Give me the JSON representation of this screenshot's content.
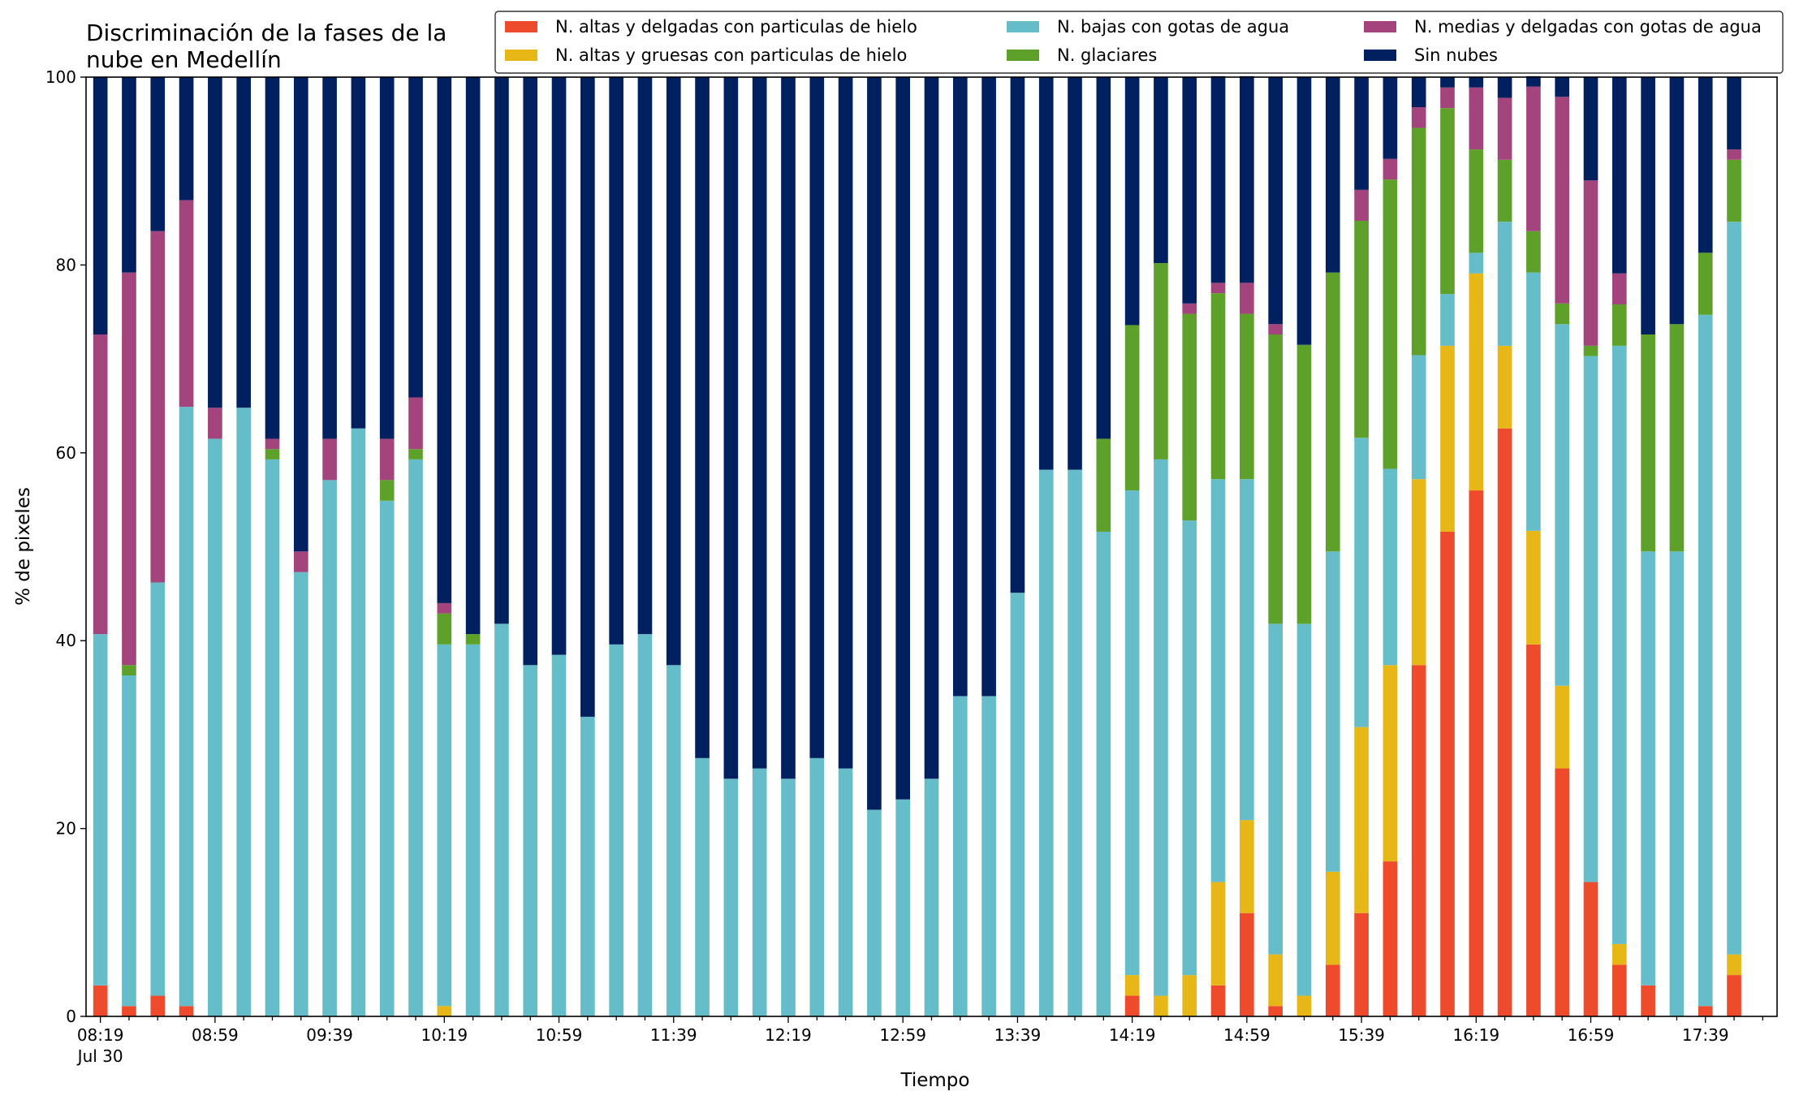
{
  "chart_data": {
    "type": "bar",
    "stacked": true,
    "title": [
      "Discriminación de la fases de la",
      "nube en Medellín"
    ],
    "xlabel": "Tiempo",
    "ylabel": "% de pixeles",
    "ylim": [
      0,
      100
    ],
    "yticks": [
      0,
      20,
      40,
      60,
      80,
      100
    ],
    "grid": false,
    "legend_position": "top-right",
    "x_date_label": "Jul 30",
    "x": [
      "08:19",
      "08:29",
      "08:39",
      "08:49",
      "08:59",
      "09:09",
      "09:19",
      "09:29",
      "09:39",
      "09:49",
      "09:59",
      "10:09",
      "10:19",
      "10:29",
      "10:39",
      "10:49",
      "10:59",
      "11:09",
      "11:19",
      "11:29",
      "11:39",
      "11:49",
      "11:59",
      "12:09",
      "12:19",
      "12:29",
      "12:39",
      "12:49",
      "12:59",
      "13:09",
      "13:19",
      "13:29",
      "13:39",
      "13:49",
      "13:59",
      "14:09",
      "14:19",
      "14:29",
      "14:39",
      "14:49",
      "14:59",
      "15:09",
      "15:19",
      "15:29",
      "15:39",
      "15:49",
      "15:59",
      "16:09",
      "16:19",
      "16:29",
      "16:39",
      "16:49",
      "16:59",
      "17:09",
      "17:19",
      "17:29",
      "17:39",
      "17:49"
    ],
    "x_tick_labels": [
      "08:19",
      "08:59",
      "09:39",
      "10:19",
      "10:59",
      "11:39",
      "12:19",
      "12:59",
      "13:39",
      "14:19",
      "14:59",
      "15:39",
      "16:19",
      "16:59",
      "17:39"
    ],
    "x_tick_label_times": [
      "08:19",
      "08:59",
      "09:39",
      "10:19",
      "10:59",
      "11:39",
      "12:19",
      "12:59",
      "13:39",
      "14:19",
      "14:59",
      "15:39",
      "16:19",
      "16:59",
      "17:39"
    ],
    "series": [
      {
        "name": "N. altas y delgadas con particulas de hielo",
        "color": "#ee4a2c",
        "values": [
          3.3,
          1.1,
          2.2,
          1.1,
          0,
          0,
          0,
          0,
          0,
          0,
          0,
          0,
          0,
          0,
          0,
          0,
          0,
          0,
          0,
          0,
          0,
          0,
          0,
          0,
          0,
          0,
          0,
          0,
          0,
          0,
          0,
          0,
          0,
          0,
          0,
          0,
          2.2,
          0,
          0,
          3.3,
          11.0,
          1.1,
          0,
          5.5,
          11.0,
          16.5,
          37.4,
          51.6,
          56.0,
          62.6,
          39.6,
          26.4,
          14.3,
          5.5,
          3.3,
          0,
          1.1,
          4.4
        ]
      },
      {
        "name": "N. altas y gruesas con particulas de hielo",
        "color": "#e6b717",
        "values": [
          0,
          0,
          0,
          0,
          0,
          0,
          0,
          0,
          0,
          0,
          0,
          0,
          1.1,
          0,
          0,
          0,
          0,
          0,
          0,
          0,
          0,
          0,
          0,
          0,
          0,
          0,
          0,
          0,
          0,
          0,
          0,
          0,
          0,
          0,
          0,
          0,
          2.2,
          2.2,
          4.4,
          11.0,
          9.9,
          5.5,
          2.2,
          9.9,
          19.8,
          20.9,
          19.8,
          19.8,
          23.1,
          8.8,
          12.1,
          8.8,
          0,
          2.2,
          0,
          0,
          0,
          2.2
        ]
      },
      {
        "name": "N. bajas con gotas de agua",
        "color": "#66bdca",
        "values": [
          37.4,
          35.2,
          44.0,
          63.8,
          61.5,
          64.8,
          59.3,
          47.3,
          57.1,
          62.6,
          54.9,
          59.3,
          38.5,
          39.6,
          41.8,
          37.4,
          38.5,
          31.9,
          39.6,
          40.7,
          37.4,
          27.5,
          25.3,
          26.4,
          25.3,
          27.5,
          26.4,
          22.0,
          23.1,
          25.3,
          34.1,
          34.1,
          45.1,
          58.2,
          58.2,
          51.6,
          51.6,
          57.1,
          48.4,
          42.9,
          36.3,
          35.2,
          39.6,
          34.1,
          30.8,
          20.9,
          13.2,
          5.5,
          2.2,
          13.2,
          27.5,
          38.5,
          56.0,
          63.7,
          46.2,
          49.5,
          73.6,
          78.0
        ]
      },
      {
        "name": "N. glaciares",
        "color": "#5da12a",
        "values": [
          0,
          1.1,
          0,
          0,
          0,
          0,
          1.1,
          0,
          0,
          0,
          2.2,
          1.1,
          3.3,
          1.1,
          0,
          0,
          0,
          0,
          0,
          0,
          0,
          0,
          0,
          0,
          0,
          0,
          0,
          0,
          0,
          0,
          0,
          0,
          0,
          0,
          0,
          9.9,
          17.6,
          20.9,
          22.0,
          19.8,
          17.6,
          30.8,
          29.7,
          29.7,
          23.1,
          30.8,
          24.2,
          19.8,
          11.0,
          6.6,
          4.4,
          2.2,
          1.1,
          4.4,
          23.1,
          24.2,
          6.6,
          6.6
        ]
      },
      {
        "name": "N. medias y delgadas con gotas de agua",
        "color": "#a4447c",
        "values": [
          31.9,
          41.8,
          37.4,
          22.0,
          3.3,
          0,
          1.1,
          2.2,
          4.4,
          0,
          4.4,
          5.5,
          1.1,
          0,
          0,
          0,
          0,
          0,
          0,
          0,
          0,
          0,
          0,
          0,
          0,
          0,
          0,
          0,
          0,
          0,
          0,
          0,
          0,
          0,
          0,
          0,
          0,
          0,
          1.1,
          1.1,
          3.3,
          1.1,
          0,
          0,
          3.3,
          2.2,
          2.2,
          2.2,
          6.6,
          6.6,
          15.4,
          22.0,
          17.6,
          3.3,
          0,
          0,
          0,
          1.1
        ]
      },
      {
        "name": "Sin nubes",
        "color": "#012060",
        "values": [
          27.4,
          20.8,
          16.4,
          13.1,
          35.2,
          35.2,
          38.5,
          50.5,
          38.5,
          37.4,
          38.5,
          34.1,
          56.0,
          59.3,
          58.2,
          62.6,
          61.5,
          68.1,
          60.4,
          59.3,
          62.6,
          72.5,
          74.7,
          73.6,
          74.7,
          72.5,
          73.6,
          78.0,
          76.9,
          74.7,
          65.9,
          65.9,
          54.9,
          41.8,
          41.8,
          38.5,
          26.4,
          19.8,
          24.1,
          22.0,
          22.0,
          26.3,
          28.5,
          20.8,
          12.0,
          8.7,
          3.2,
          1.1,
          1.1,
          2.2,
          1.1,
          2.1,
          11.0,
          20.9,
          27.4,
          26.3,
          18.7,
          7.7
        ]
      }
    ]
  }
}
